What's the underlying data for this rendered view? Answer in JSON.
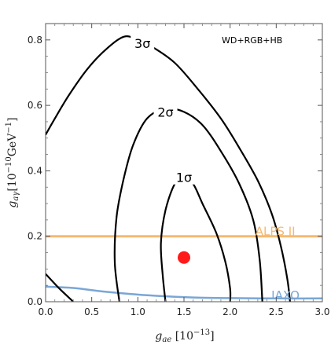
{
  "chart_data": {
    "type": "line",
    "xlabel": "g_ae [10^-13]",
    "ylabel": "g_aγ [10^-10 GeV^-1]",
    "xlim": [
      0.0,
      3.0
    ],
    "ylim": [
      0.0,
      0.85
    ],
    "x_ticks": [
      "0.0",
      "0.5",
      "1.0",
      "1.5",
      "2.0",
      "2.5",
      "3.0"
    ],
    "y_ticks": [
      "0.0",
      "0.2",
      "0.4",
      "0.6",
      "0.8"
    ],
    "annotation": "WD+RGB+HB",
    "contours": [
      {
        "name": "3σ",
        "color": "#000000",
        "points": [
          [
            0.0,
            0.51
          ],
          [
            0.08,
            0.55
          ],
          [
            0.25,
            0.63
          ],
          [
            0.45,
            0.71
          ],
          [
            0.65,
            0.77
          ],
          [
            0.85,
            0.81
          ],
          [
            1.0,
            0.8
          ],
          [
            1.15,
            0.78
          ],
          [
            1.4,
            0.73
          ],
          [
            1.65,
            0.65
          ],
          [
            1.9,
            0.56
          ],
          [
            2.1,
            0.47
          ],
          [
            2.3,
            0.37
          ],
          [
            2.45,
            0.27
          ],
          [
            2.55,
            0.17
          ],
          [
            2.62,
            0.07
          ],
          [
            2.65,
            0.0
          ]
        ],
        "lower_branch": [
          [
            0.0,
            0.085
          ],
          [
            0.15,
            0.04
          ],
          [
            0.3,
            0.0
          ]
        ]
      },
      {
        "name": "2σ",
        "color": "#000000",
        "points": [
          [
            0.8,
            0.0
          ],
          [
            0.75,
            0.12
          ],
          [
            0.77,
            0.26
          ],
          [
            0.85,
            0.38
          ],
          [
            0.95,
            0.48
          ],
          [
            1.1,
            0.56
          ],
          [
            1.3,
            0.59
          ],
          [
            1.5,
            0.58
          ],
          [
            1.7,
            0.54
          ],
          [
            1.9,
            0.46
          ],
          [
            2.1,
            0.36
          ],
          [
            2.25,
            0.25
          ],
          [
            2.32,
            0.13
          ],
          [
            2.35,
            0.0
          ]
        ]
      },
      {
        "name": "1σ",
        "color": "#000000",
        "points": [
          [
            1.3,
            0.0
          ],
          [
            1.27,
            0.08
          ],
          [
            1.25,
            0.18
          ],
          [
            1.3,
            0.28
          ],
          [
            1.4,
            0.36
          ],
          [
            1.5,
            0.38
          ],
          [
            1.6,
            0.36
          ],
          [
            1.7,
            0.3
          ],
          [
            1.85,
            0.21
          ],
          [
            1.95,
            0.12
          ],
          [
            2.0,
            0.04
          ],
          [
            2.0,
            0.0
          ]
        ]
      }
    ],
    "hlines": [
      {
        "name": "ALPS II",
        "y": 0.2,
        "color": "#f5b971"
      }
    ],
    "curves": [
      {
        "name": "IAXO",
        "color": "#7aa6d6",
        "points": [
          [
            0.0,
            0.046
          ],
          [
            0.3,
            0.042
          ],
          [
            0.6,
            0.032
          ],
          [
            0.9,
            0.024
          ],
          [
            1.2,
            0.018
          ],
          [
            1.6,
            0.013
          ],
          [
            2.0,
            0.011
          ],
          [
            2.5,
            0.01
          ],
          [
            3.0,
            0.01
          ]
        ]
      }
    ],
    "points": [
      {
        "x": 1.5,
        "y": 0.135,
        "color": "#ff1a1a"
      }
    ]
  }
}
